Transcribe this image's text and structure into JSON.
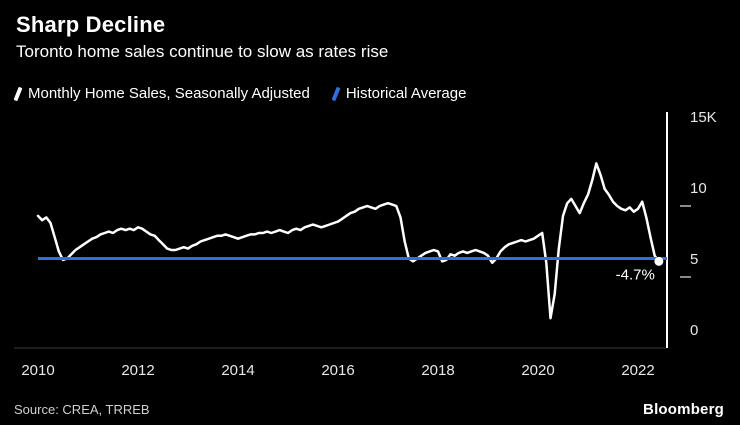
{
  "footer": {
    "source": "Source: CREA, TRREB",
    "logo": "Bloomberg"
  },
  "colors": {
    "background": "#000000",
    "axis_line": "#ffffff",
    "tick_mark": "#8a8a8a",
    "tick_label": "#e8e8e8",
    "baseline": "#3a3a3a"
  },
  "chart_data": {
    "type": "line",
    "title": "Sharp Decline",
    "subtitle": "Toronto home sales continue to slow as rates rise",
    "x_unit": "year",
    "xlim": [
      2010,
      2022.58
    ],
    "ylim": [
      0,
      15000
    ],
    "xticks": [
      2010,
      2012,
      2014,
      2016,
      2018,
      2020,
      2022
    ],
    "yticks": [
      {
        "value": 15000,
        "label": "15K",
        "tick": false
      },
      {
        "value": 10000,
        "label": "10",
        "tick": true
      },
      {
        "value": 5000,
        "label": "5",
        "tick": true
      },
      {
        "value": 0,
        "label": "0",
        "tick": false
      }
    ],
    "grid": false,
    "legend_position": "top",
    "series": [
      {
        "name": "Monthly Home Sales, Seasonally Adjusted",
        "type": "line",
        "color": "#ffffff",
        "points": [
          [
            2010.0,
            9300
          ],
          [
            2010.083,
            9000
          ],
          [
            2010.167,
            9200
          ],
          [
            2010.25,
            8800
          ],
          [
            2010.333,
            7800
          ],
          [
            2010.417,
            6800
          ],
          [
            2010.5,
            6200
          ],
          [
            2010.583,
            6300
          ],
          [
            2010.667,
            6600
          ],
          [
            2010.75,
            6900
          ],
          [
            2010.833,
            7100
          ],
          [
            2010.917,
            7300
          ],
          [
            2011.0,
            7500
          ],
          [
            2011.083,
            7700
          ],
          [
            2011.167,
            7800
          ],
          [
            2011.25,
            8000
          ],
          [
            2011.333,
            8100
          ],
          [
            2011.417,
            8200
          ],
          [
            2011.5,
            8100
          ],
          [
            2011.583,
            8300
          ],
          [
            2011.667,
            8400
          ],
          [
            2011.75,
            8300
          ],
          [
            2011.833,
            8400
          ],
          [
            2011.917,
            8300
          ],
          [
            2012.0,
            8500
          ],
          [
            2012.083,
            8400
          ],
          [
            2012.167,
            8200
          ],
          [
            2012.25,
            8000
          ],
          [
            2012.333,
            7900
          ],
          [
            2012.417,
            7600
          ],
          [
            2012.5,
            7300
          ],
          [
            2012.583,
            7000
          ],
          [
            2012.667,
            6900
          ],
          [
            2012.75,
            6900
          ],
          [
            2012.833,
            7000
          ],
          [
            2012.917,
            7100
          ],
          [
            2013.0,
            7000
          ],
          [
            2013.083,
            7200
          ],
          [
            2013.167,
            7300
          ],
          [
            2013.25,
            7500
          ],
          [
            2013.333,
            7600
          ],
          [
            2013.417,
            7700
          ],
          [
            2013.5,
            7800
          ],
          [
            2013.583,
            7900
          ],
          [
            2013.667,
            7900
          ],
          [
            2013.75,
            8000
          ],
          [
            2013.833,
            7900
          ],
          [
            2013.917,
            7800
          ],
          [
            2014.0,
            7700
          ],
          [
            2014.083,
            7800
          ],
          [
            2014.167,
            7900
          ],
          [
            2014.25,
            8000
          ],
          [
            2014.333,
            8000
          ],
          [
            2014.417,
            8100
          ],
          [
            2014.5,
            8100
          ],
          [
            2014.583,
            8200
          ],
          [
            2014.667,
            8100
          ],
          [
            2014.75,
            8200
          ],
          [
            2014.833,
            8300
          ],
          [
            2014.917,
            8200
          ],
          [
            2015.0,
            8100
          ],
          [
            2015.083,
            8300
          ],
          [
            2015.167,
            8400
          ],
          [
            2015.25,
            8300
          ],
          [
            2015.333,
            8500
          ],
          [
            2015.417,
            8600
          ],
          [
            2015.5,
            8700
          ],
          [
            2015.583,
            8600
          ],
          [
            2015.667,
            8500
          ],
          [
            2015.75,
            8600
          ],
          [
            2015.833,
            8700
          ],
          [
            2015.917,
            8800
          ],
          [
            2016.0,
            8900
          ],
          [
            2016.083,
            9100
          ],
          [
            2016.167,
            9300
          ],
          [
            2016.25,
            9500
          ],
          [
            2016.333,
            9600
          ],
          [
            2016.417,
            9800
          ],
          [
            2016.5,
            9900
          ],
          [
            2016.583,
            10000
          ],
          [
            2016.667,
            9900
          ],
          [
            2016.75,
            9800
          ],
          [
            2016.833,
            10000
          ],
          [
            2016.917,
            10100
          ],
          [
            2017.0,
            10200
          ],
          [
            2017.083,
            10100
          ],
          [
            2017.167,
            10000
          ],
          [
            2017.25,
            9200
          ],
          [
            2017.333,
            7500
          ],
          [
            2017.417,
            6300
          ],
          [
            2017.5,
            6100
          ],
          [
            2017.583,
            6300
          ],
          [
            2017.667,
            6500
          ],
          [
            2017.75,
            6700
          ],
          [
            2017.833,
            6800
          ],
          [
            2017.917,
            6900
          ],
          [
            2018.0,
            6800
          ],
          [
            2018.083,
            6100
          ],
          [
            2018.167,
            6200
          ],
          [
            2018.25,
            6600
          ],
          [
            2018.333,
            6500
          ],
          [
            2018.417,
            6700
          ],
          [
            2018.5,
            6800
          ],
          [
            2018.583,
            6700
          ],
          [
            2018.667,
            6800
          ],
          [
            2018.75,
            6900
          ],
          [
            2018.833,
            6800
          ],
          [
            2018.917,
            6700
          ],
          [
            2019.0,
            6500
          ],
          [
            2019.083,
            6000
          ],
          [
            2019.167,
            6300
          ],
          [
            2019.25,
            6800
          ],
          [
            2019.333,
            7100
          ],
          [
            2019.417,
            7300
          ],
          [
            2019.5,
            7400
          ],
          [
            2019.583,
            7500
          ],
          [
            2019.667,
            7600
          ],
          [
            2019.75,
            7500
          ],
          [
            2019.833,
            7600
          ],
          [
            2019.917,
            7700
          ],
          [
            2020.0,
            7900
          ],
          [
            2020.083,
            8100
          ],
          [
            2020.167,
            6000
          ],
          [
            2020.25,
            2100
          ],
          [
            2020.333,
            3800
          ],
          [
            2020.417,
            7000
          ],
          [
            2020.5,
            9300
          ],
          [
            2020.583,
            10200
          ],
          [
            2020.667,
            10500
          ],
          [
            2020.75,
            10000
          ],
          [
            2020.833,
            9500
          ],
          [
            2020.917,
            10200
          ],
          [
            2021.0,
            10800
          ],
          [
            2021.083,
            11800
          ],
          [
            2021.167,
            13000
          ],
          [
            2021.25,
            12200
          ],
          [
            2021.333,
            11200
          ],
          [
            2021.417,
            10800
          ],
          [
            2021.5,
            10300
          ],
          [
            2021.583,
            10000
          ],
          [
            2021.667,
            9800
          ],
          [
            2021.75,
            9700
          ],
          [
            2021.833,
            9900
          ],
          [
            2021.917,
            9600
          ],
          [
            2022.0,
            9800
          ],
          [
            2022.083,
            10300
          ],
          [
            2022.167,
            9200
          ],
          [
            2022.25,
            7800
          ],
          [
            2022.333,
            6500
          ],
          [
            2022.417,
            6100
          ]
        ]
      },
      {
        "name": "Historical Average",
        "type": "constant-line",
        "color": "#2f6fe0",
        "value": 6300
      }
    ],
    "end_point": {
      "x": 2022.417,
      "value": 6100,
      "label": "-4.7%"
    }
  }
}
